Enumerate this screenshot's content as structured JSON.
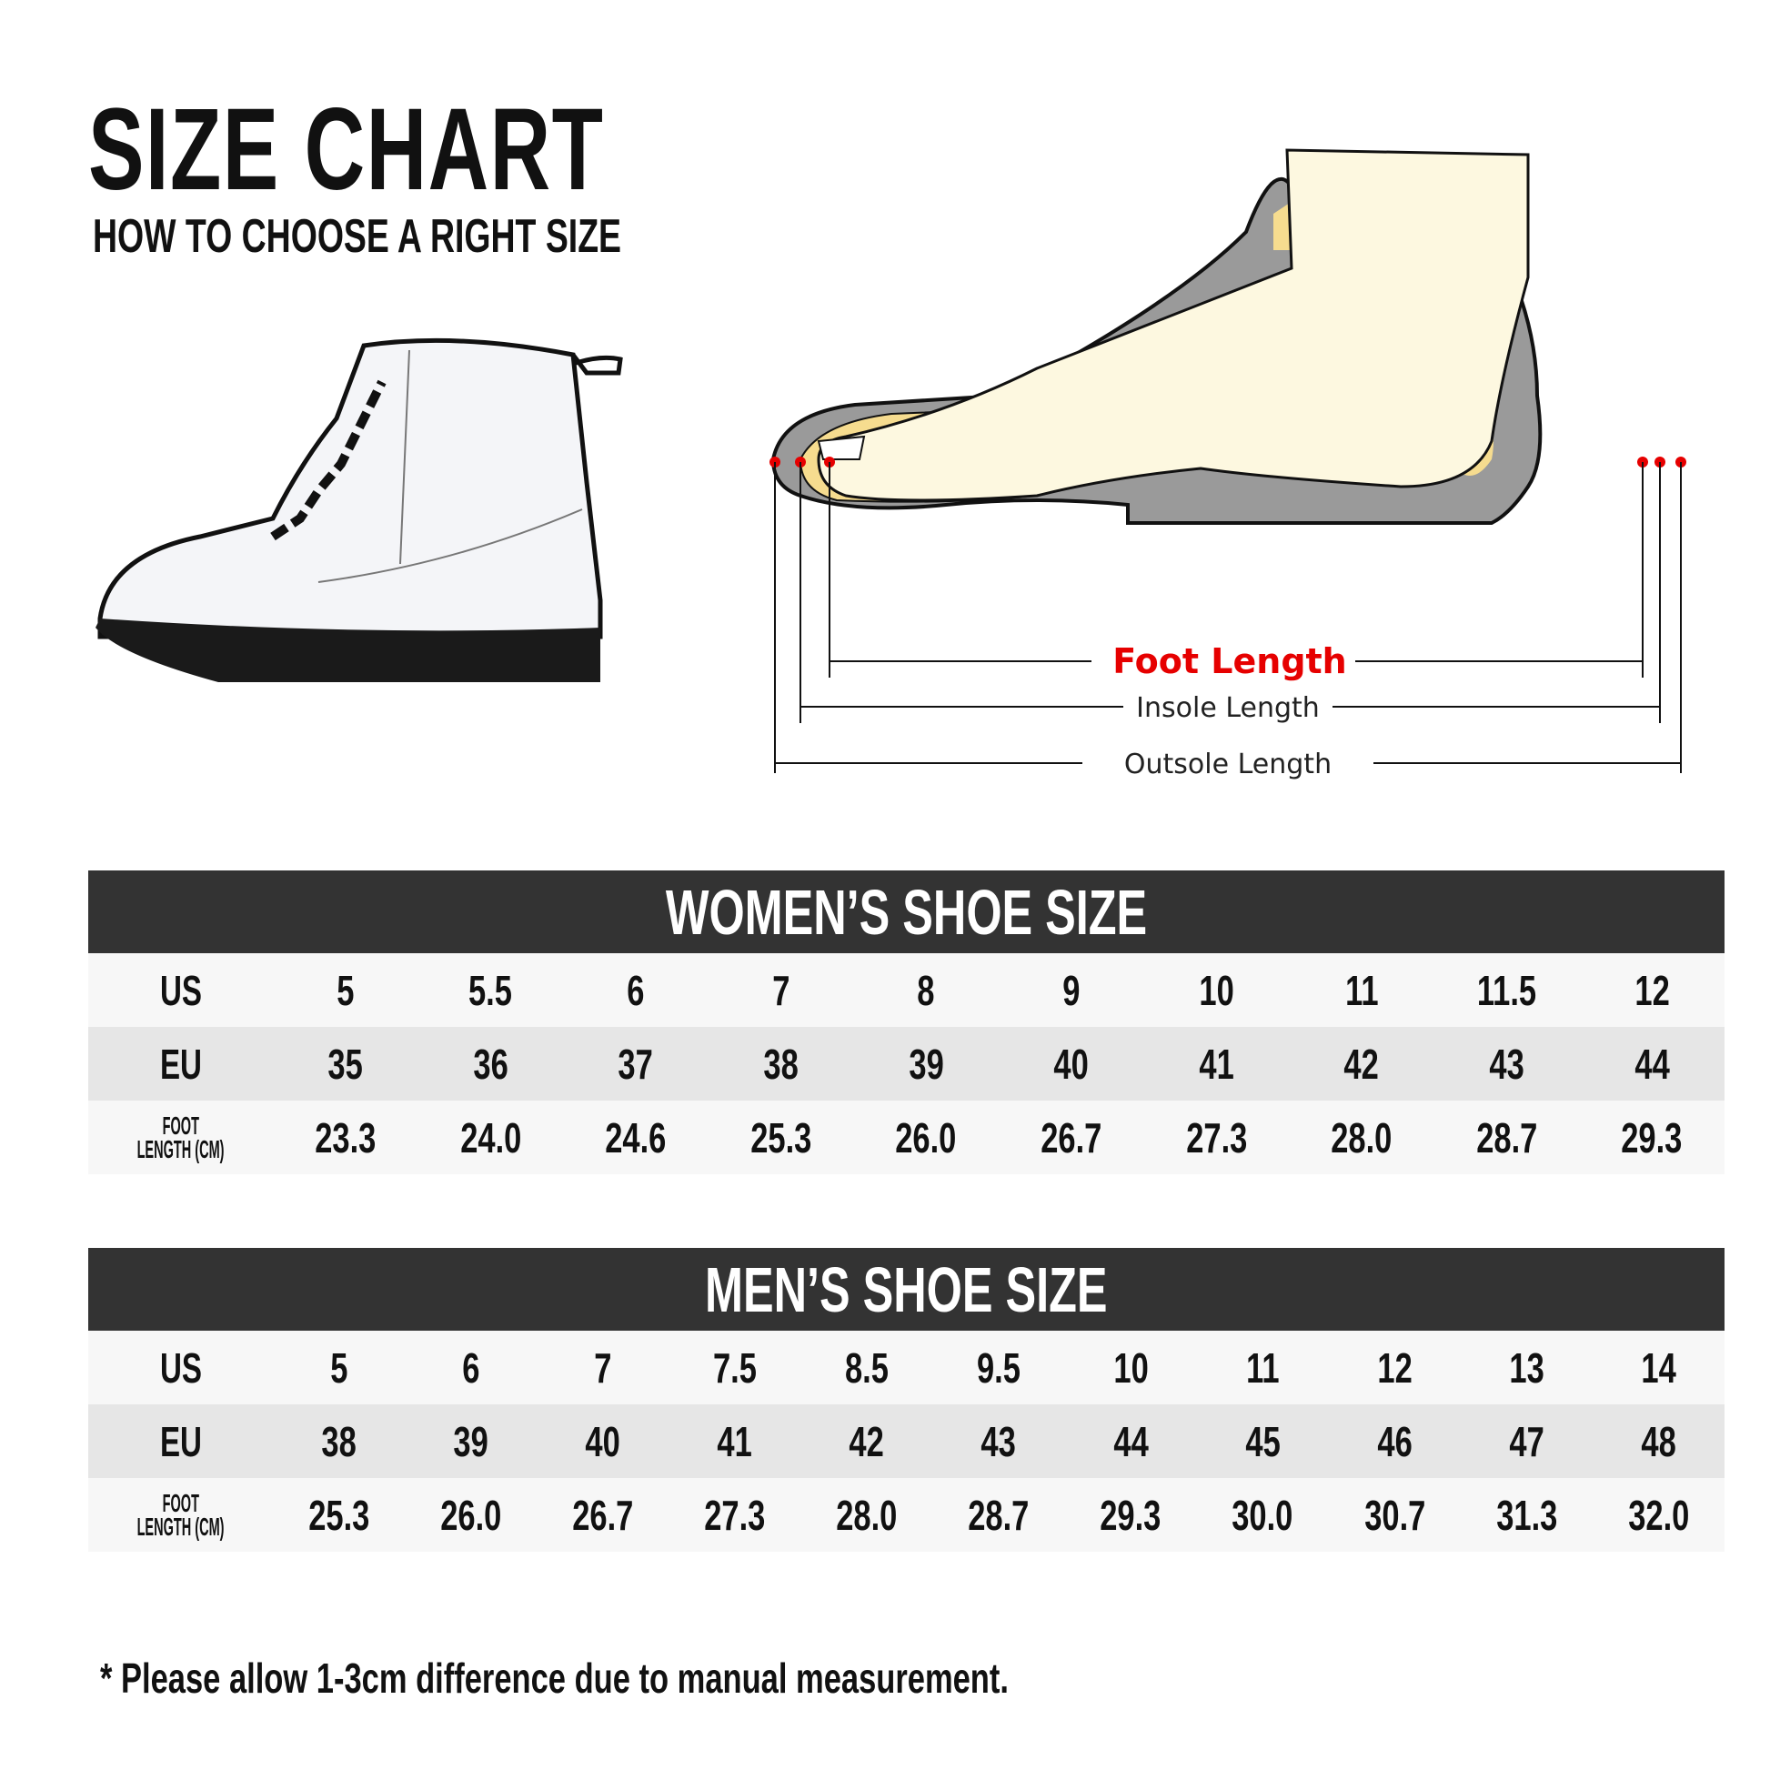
{
  "header": {
    "title": "SIZE CHART",
    "subtitle": "HOW TO CHOOSE A RIGHT SIZE"
  },
  "diagram": {
    "foot_length": "Foot Length",
    "insole_length": "Insole Length",
    "outsole_length": "Outsole Length",
    "accent": "#e60000"
  },
  "women": {
    "title": "WOMEN’S SHOE SIZE",
    "rows": [
      {
        "label": "US",
        "values": [
          "5",
          "5.5",
          "6",
          "7",
          "8",
          "9",
          "10",
          "11",
          "11.5",
          "12"
        ]
      },
      {
        "label": "EU",
        "values": [
          "35",
          "36",
          "37",
          "38",
          "39",
          "40",
          "41",
          "42",
          "43",
          "44"
        ]
      },
      {
        "label": "FOOT LENGTH (CM)",
        "label_line1": "FOOT",
        "label_line2": "LENGTH (CM)",
        "values": [
          "23.3",
          "24.0",
          "24.6",
          "25.3",
          "26.0",
          "26.7",
          "27.3",
          "28.0",
          "28.7",
          "29.3"
        ]
      }
    ]
  },
  "men": {
    "title": "MEN’S SHOE SIZE",
    "rows": [
      {
        "label": "US",
        "values": [
          "5",
          "6",
          "7",
          "7.5",
          "8.5",
          "9.5",
          "10",
          "11",
          "12",
          "13",
          "14"
        ]
      },
      {
        "label": "EU",
        "values": [
          "38",
          "39",
          "40",
          "41",
          "42",
          "43",
          "44",
          "45",
          "46",
          "47",
          "48"
        ]
      },
      {
        "label": "FOOT LENGTH (CM)",
        "label_line1": "FOOT",
        "label_line2": "LENGTH (CM)",
        "values": [
          "25.3",
          "26.0",
          "26.7",
          "27.3",
          "28.0",
          "28.7",
          "29.3",
          "30.0",
          "30.7",
          "31.3",
          "32.0"
        ]
      }
    ]
  },
  "footnote": "* Please allow 1-3cm difference due to manual measurement."
}
